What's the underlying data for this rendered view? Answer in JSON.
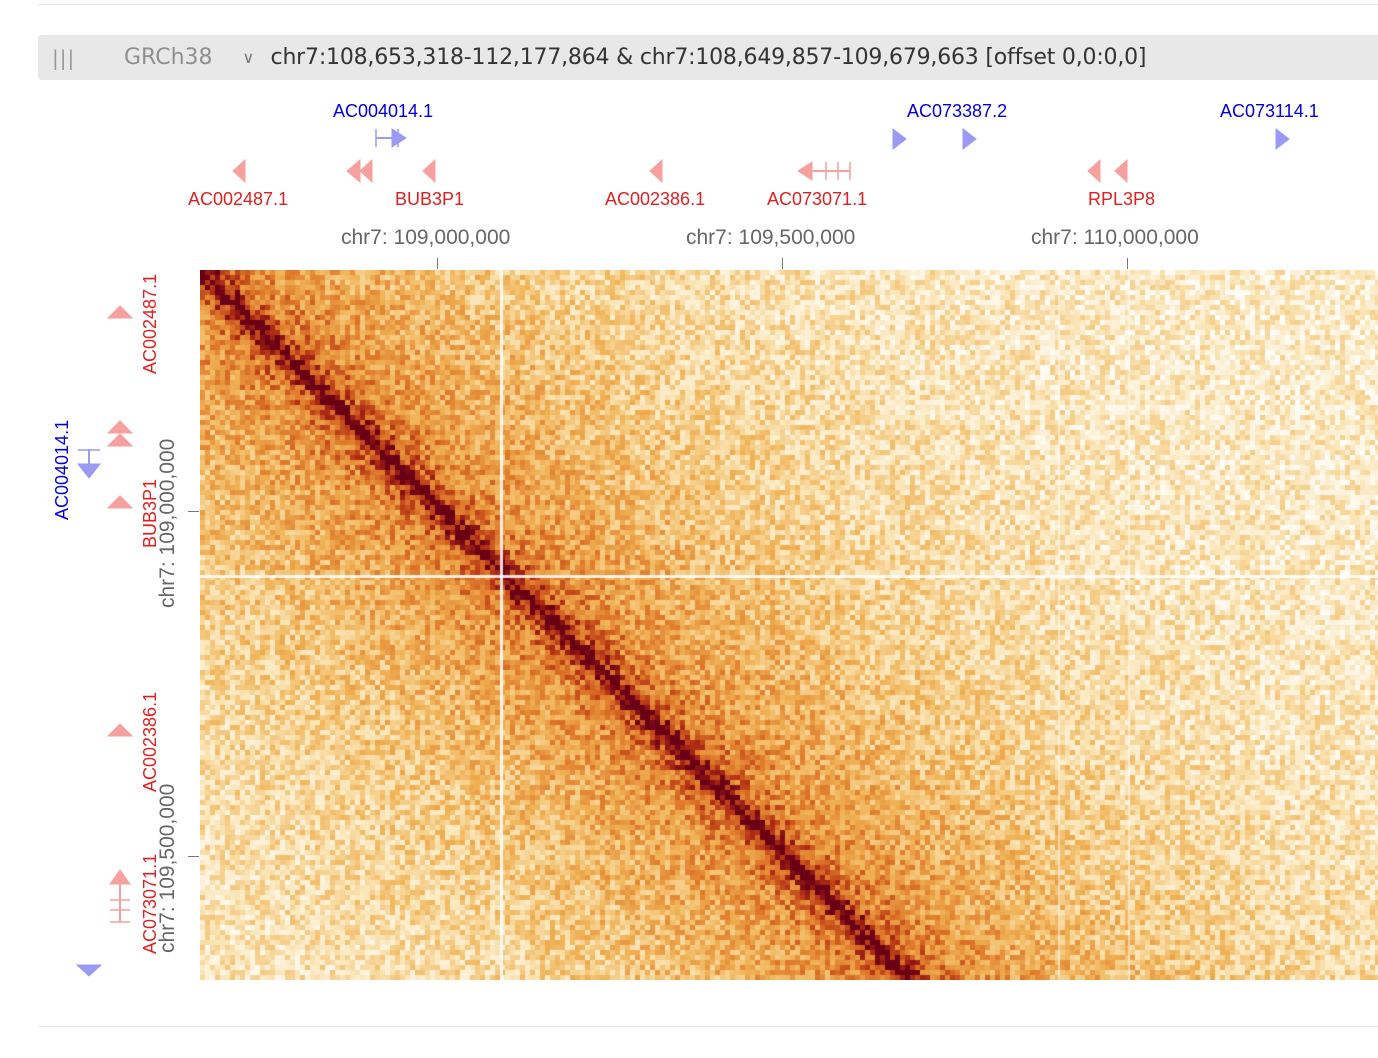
{
  "header": {
    "assembly": "GRCh38",
    "location": "chr7:108,653,318-112,177,864 & chr7:108,649,857-109,679,663 [offset 0,0:0,0]"
  },
  "colors": {
    "plus_strand": "#0000e0",
    "minus_strand": "#e02020",
    "heatmap_low": "#ffffff",
    "heatmap_mid": "#f0b050",
    "heatmap_high": "#800010"
  },
  "top_genes": {
    "plus": [
      {
        "label": "AC004014.1"
      },
      {
        "label": "AC073387.2"
      },
      {
        "label": "AC073114.1"
      }
    ],
    "minus": [
      {
        "label": "AC002487.1"
      },
      {
        "label": "BUB3P1"
      },
      {
        "label": "AC002386.1"
      },
      {
        "label": "AC073071.1"
      },
      {
        "label": "RPL3P8"
      }
    ]
  },
  "top_axis": {
    "ticks": [
      "chr7: 109,000,000",
      "chr7: 109,500,000",
      "chr7: 110,000,000"
    ]
  },
  "left_genes": {
    "plus": [
      {
        "label": "AC004014.1"
      }
    ],
    "minus": [
      {
        "label": "AC002487.1"
      },
      {
        "label": "BUB3P1"
      },
      {
        "label": "AC002386.1"
      },
      {
        "label": "AC073071.1"
      }
    ]
  },
  "left_axis": {
    "ticks": [
      "chr7: 109,000,000",
      "chr7: 109,500,000"
    ]
  }
}
